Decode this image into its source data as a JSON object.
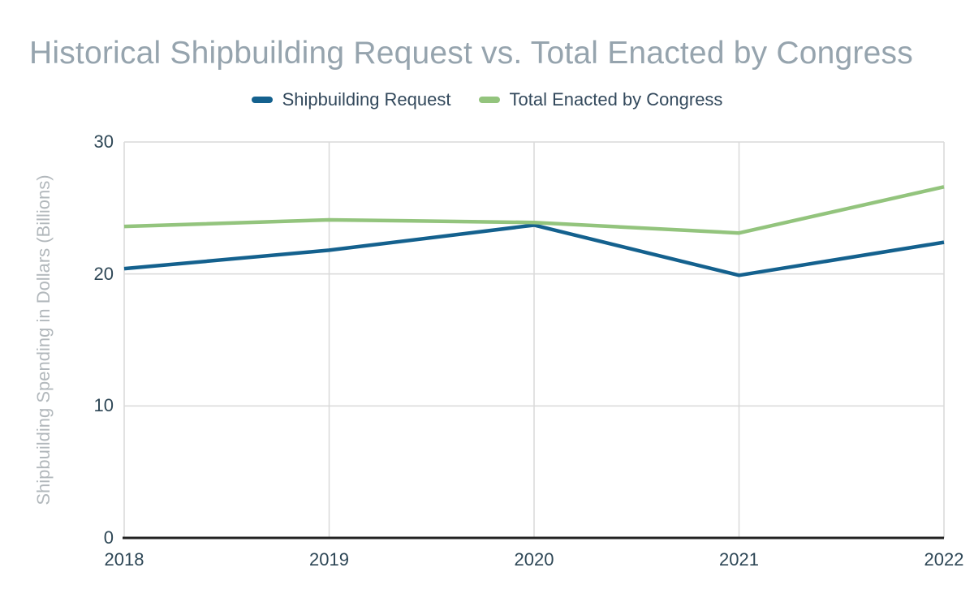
{
  "chart_data": {
    "type": "line",
    "title": "Historical Shipbuilding Request vs. Total Enacted by Congress",
    "categories": [
      "2018",
      "2019",
      "2020",
      "2021",
      "2022"
    ],
    "series": [
      {
        "name": "Shipbuilding Request",
        "color": "#14618e",
        "values": [
          20.4,
          21.8,
          23.7,
          19.9,
          22.4
        ]
      },
      {
        "name": "Total Enacted by Congress",
        "color": "#93c47d",
        "values": [
          23.6,
          24.1,
          23.9,
          23.1,
          26.6
        ]
      }
    ],
    "xlabel": "",
    "ylabel": "Shipbuilding Spending in Dollars (Billions)",
    "ylim": [
      0,
      30
    ],
    "yticks": [
      0,
      10,
      20,
      30
    ],
    "grid": true,
    "legend_position": "top"
  },
  "colors": {
    "title_text": "#96a4ae",
    "axis_text": "#2e4756",
    "legend_text": "#33495c",
    "ylabel_text": "#b2b8bc",
    "gridline": "#d9d9d9",
    "baseline": "#222222",
    "background": "#ffffff"
  }
}
